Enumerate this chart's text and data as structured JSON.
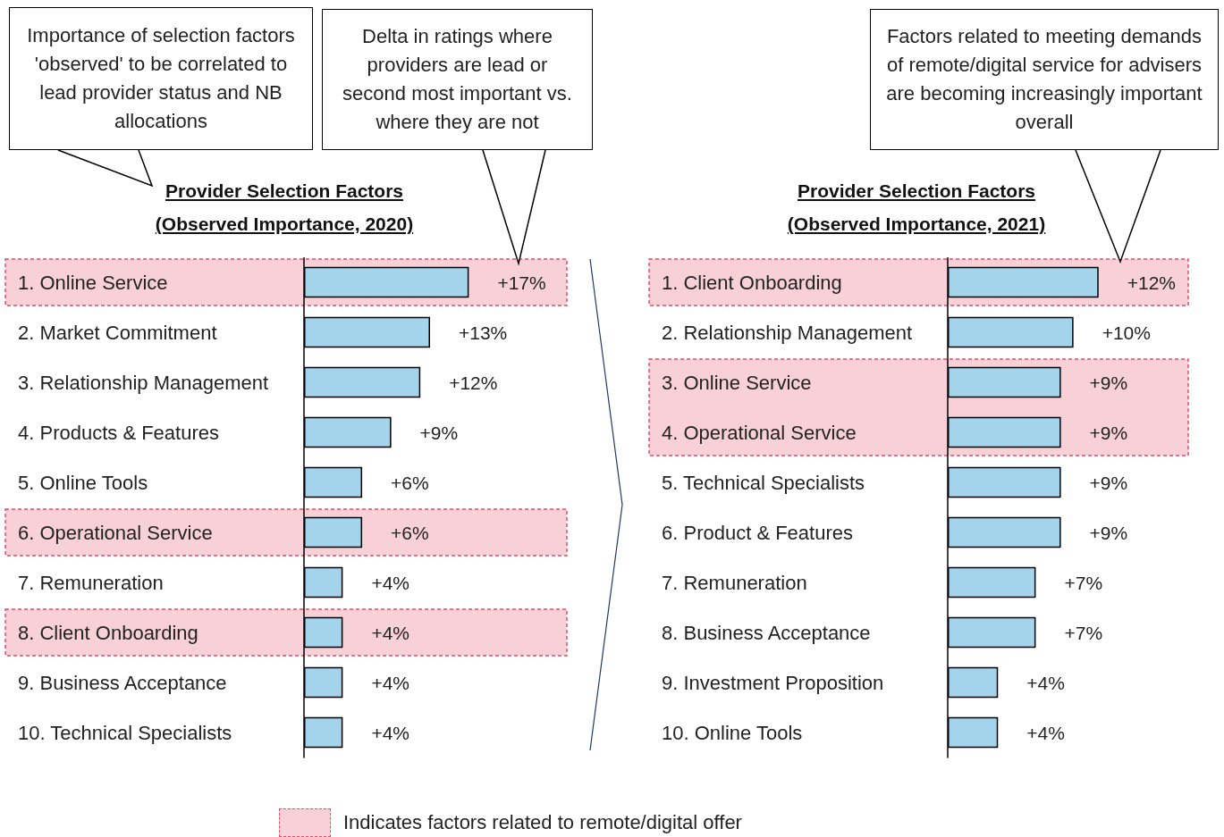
{
  "chart_data": [
    {
      "type": "bar",
      "orientation": "horizontal",
      "title": "Provider Selection Factors\n(Observed Importance, 2020)",
      "categories": [
        "1. Online Service",
        "2. Market Commitment",
        "3. Relationship Management",
        "4. Products & Features",
        "5. Online Tools",
        "6. Operational Service",
        "7. Remuneration",
        "8. Client Onboarding",
        "9. Business Acceptance",
        "10. Technical Specialists"
      ],
      "values": [
        17,
        13,
        12,
        9,
        6,
        6,
        4,
        4,
        4,
        4
      ],
      "value_labels": [
        "+17%",
        "+13%",
        "+12%",
        "+9%",
        "+6%",
        "+6%",
        "+4%",
        "+4%",
        "+4%",
        "+4%"
      ],
      "color": "#a3d4eb",
      "tick_labels": "y",
      "grid": false,
      "bands": [
        {
          "axis": "y",
          "from": "1. Online Service",
          "to": "1. Online Service",
          "color": "#f8d0d8",
          "label": "Indicates factors related to remote/digital offer"
        },
        {
          "axis": "y",
          "from": "6. Operational Service",
          "to": "6. Operational Service",
          "color": "#f8d0d8"
        },
        {
          "axis": "y",
          "from": "8. Client Onboarding",
          "to": "8. Client Onboarding",
          "color": "#f8d0d8"
        }
      ],
      "annotations": [
        "Importance of selection factors 'observed' to be correlated to lead provider status and NB allocations",
        "Delta in ratings where providers are lead or second most important vs. where they are not"
      ]
    },
    {
      "type": "bar",
      "orientation": "horizontal",
      "title": "Provider Selection Factors\n(Observed Importance, 2021)",
      "categories": [
        "1. Client Onboarding",
        "2. Relationship Management",
        "3. Online Service",
        "4. Operational Service",
        "5. Technical Specialists",
        "6. Product & Features",
        "7. Remuneration",
        "8. Business Acceptance",
        "9. Investment Proposition",
        "10. Online Tools"
      ],
      "values": [
        12,
        10,
        9,
        9,
        9,
        9,
        7,
        7,
        4,
        4
      ],
      "value_labels": [
        "+12%",
        "+10%",
        "+9%",
        "+9%",
        "+9%",
        "+9%",
        "+7%",
        "+7%",
        "+4%",
        "+4%"
      ],
      "color": "#a3d4eb",
      "tick_labels": "y",
      "grid": false,
      "bands": [
        {
          "axis": "y",
          "from": "1. Client Onboarding",
          "to": "1. Client Onboarding",
          "color": "#f8d0d8"
        },
        {
          "axis": "y",
          "from": "3. Online Service",
          "to": "4. Operational Service",
          "color": "#f8d0d8"
        }
      ],
      "annotations": [
        "Factors related to meeting demands of remote/digital service for advisers are becoming increasingly important overall"
      ]
    }
  ]
}
